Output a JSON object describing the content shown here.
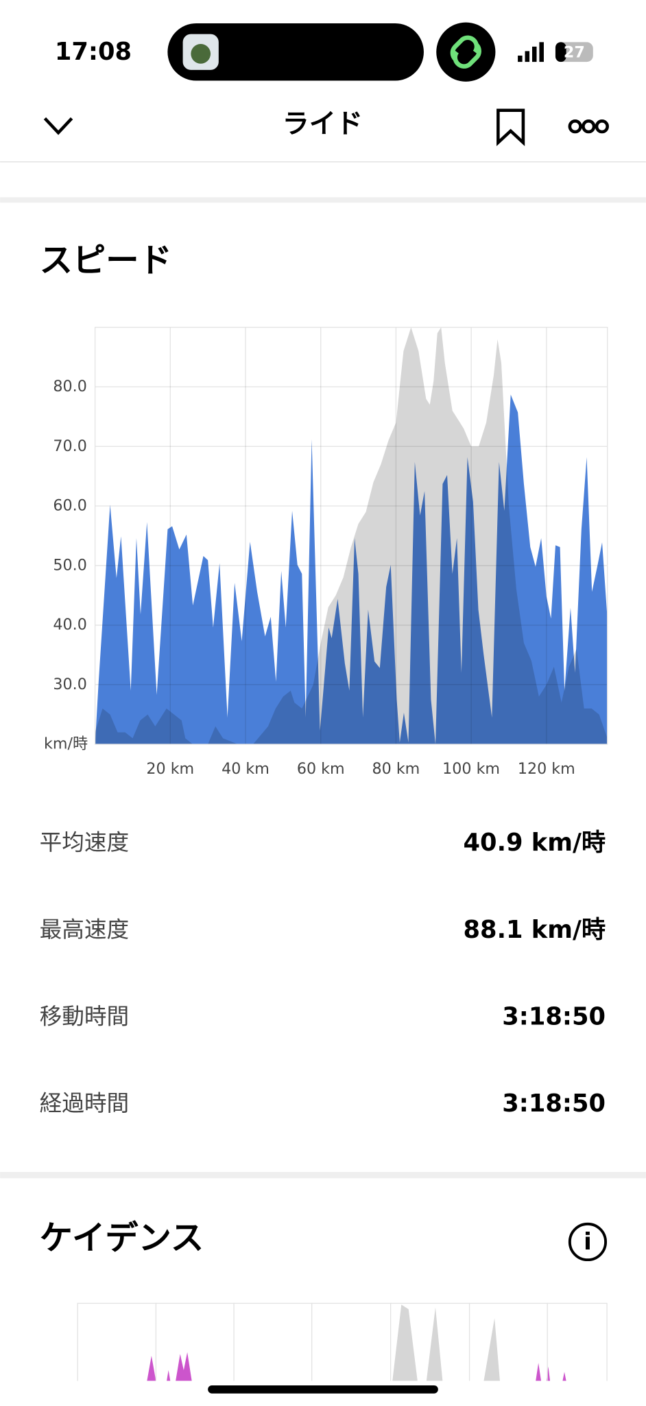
{
  "status": {
    "time": "17:08",
    "battery": "27"
  },
  "header": {
    "title": "ライド"
  },
  "speed_section": {
    "title": "スピード"
  },
  "chart_data": {
    "type": "area",
    "y_label": "km/時",
    "xlim": [
      0,
      136.2
    ],
    "ylim": [
      20,
      90
    ],
    "xticks": [
      {
        "value": 20,
        "label": "20 km"
      },
      {
        "value": 40,
        "label": "40 km"
      },
      {
        "value": 60,
        "label": "60 km"
      },
      {
        "value": 80,
        "label": "80 km"
      },
      {
        "value": 100,
        "label": "100 km"
      },
      {
        "value": 120,
        "label": "120 km"
      }
    ],
    "yticks": [
      {
        "value": 30,
        "label": "30.0"
      },
      {
        "value": 40,
        "label": "40.0"
      },
      {
        "value": 50,
        "label": "50.0"
      },
      {
        "value": 60,
        "label": "60.0"
      },
      {
        "value": 70,
        "label": "70.0"
      },
      {
        "value": 80,
        "label": "80.0"
      }
    ],
    "grid": true,
    "series": [
      {
        "color": "#d6d6d6",
        "x": [
          0,
          2,
          4,
          6,
          8,
          10,
          12,
          14,
          16,
          19,
          21,
          23,
          24,
          26,
          30,
          32,
          34,
          38,
          42,
          46,
          48,
          50,
          52,
          53,
          55,
          58,
          60,
          62,
          64,
          66,
          68,
          70,
          72,
          74,
          76,
          78,
          80,
          82,
          84,
          86,
          88,
          89,
          90,
          91,
          92,
          93,
          95,
          97,
          98,
          100,
          102,
          104,
          106,
          107,
          108,
          110,
          112,
          114,
          116,
          118,
          120,
          122,
          124,
          126,
          128,
          130,
          132,
          134,
          136.2
        ],
        "values": [
          22,
          26,
          25,
          22,
          22,
          21,
          24,
          25,
          23,
          26,
          25,
          24,
          21,
          20,
          20,
          23,
          21,
          20,
          20,
          23,
          26,
          28,
          29,
          27,
          26,
          30,
          37,
          43,
          45,
          48,
          53,
          57,
          59,
          64,
          67,
          71,
          74,
          86,
          90,
          86,
          78,
          77,
          81,
          89,
          90,
          84,
          76,
          74,
          73,
          70,
          70,
          74,
          82,
          88,
          84,
          60,
          46,
          37,
          34,
          28,
          30,
          33,
          27,
          33,
          36,
          26,
          26,
          25,
          21
        ]
      },
      {
        "name": "スピード",
        "color": "#4a7fd8",
        "x": [
          0,
          0.95,
          4.0,
          5.7,
          6.9,
          9.5,
          11.0,
          12.1,
          13.8,
          16.4,
          19.3,
          20.5,
          22.4,
          24.3,
          26.0,
          28.8,
          30.0,
          31.4,
          33.1,
          35.2,
          37.1,
          39.0,
          41.2,
          43.1,
          45.2,
          46.7,
          48.1,
          49.5,
          50.7,
          52.4,
          53.8,
          55.0,
          56.0,
          57.6,
          59.8,
          62.1,
          62.9,
          64.5,
          66.4,
          67.6,
          69.0,
          70.0,
          71.2,
          72.6,
          74.3,
          75.7,
          77.4,
          78.6,
          80.2,
          81.0,
          82.1,
          83.3,
          85.0,
          86.4,
          87.6,
          89.3,
          90.5,
          92.4,
          93.6,
          95.0,
          96.2,
          97.4,
          99.0,
          100.5,
          101.9,
          103.3,
          105.5,
          107.4,
          108.8,
          110.5,
          112.4,
          114.0,
          115.7,
          117.1,
          118.6,
          120.0,
          121.2,
          122.4,
          123.6,
          124.8,
          126.4,
          127.6,
          129.3,
          130.7,
          132.1,
          133.6,
          134.8,
          136.2
        ],
        "values": [
          20,
          30.5,
          60.2,
          47.9,
          54.9,
          29.0,
          54.6,
          41.8,
          57.3,
          28.3,
          56.1,
          56.6,
          52.7,
          55.2,
          43.3,
          51.6,
          50.9,
          39.6,
          50.4,
          24.5,
          47.1,
          37.3,
          54.0,
          45.6,
          38.1,
          41.4,
          30.5,
          49.1,
          39.6,
          59.2,
          50.1,
          48.6,
          24.5,
          71.2,
          22.3,
          39.6,
          37.8,
          44.4,
          33.6,
          29.0,
          54.6,
          48.6,
          24.5,
          42.6,
          33.9,
          32.8,
          46.4,
          50.1,
          27.5,
          20.3,
          25.3,
          20.3,
          67.4,
          58.4,
          62.5,
          27.5,
          20,
          63.7,
          65.2,
          48.6,
          54.6,
          32.0,
          68.2,
          60.7,
          42.6,
          35.1,
          24.5,
          67.4,
          59.2,
          78.7,
          75.7,
          63.7,
          53.1,
          49.8,
          54.6,
          44.8,
          41.1,
          53.4,
          53.1,
          29.0,
          42.9,
          32.0,
          56.1,
          68.2,
          45.6,
          50.1,
          53.9,
          41.1
        ]
      }
    ]
  },
  "stats": [
    {
      "label": "平均速度",
      "value": "40.9 km/時"
    },
    {
      "label": "最高速度",
      "value": "88.1 km/時"
    },
    {
      "label": "移動時間",
      "value": "3:18:50"
    },
    {
      "label": "経過時間",
      "value": "3:18:50"
    }
  ],
  "cadence_section": {
    "title": "ケイデンス"
  }
}
